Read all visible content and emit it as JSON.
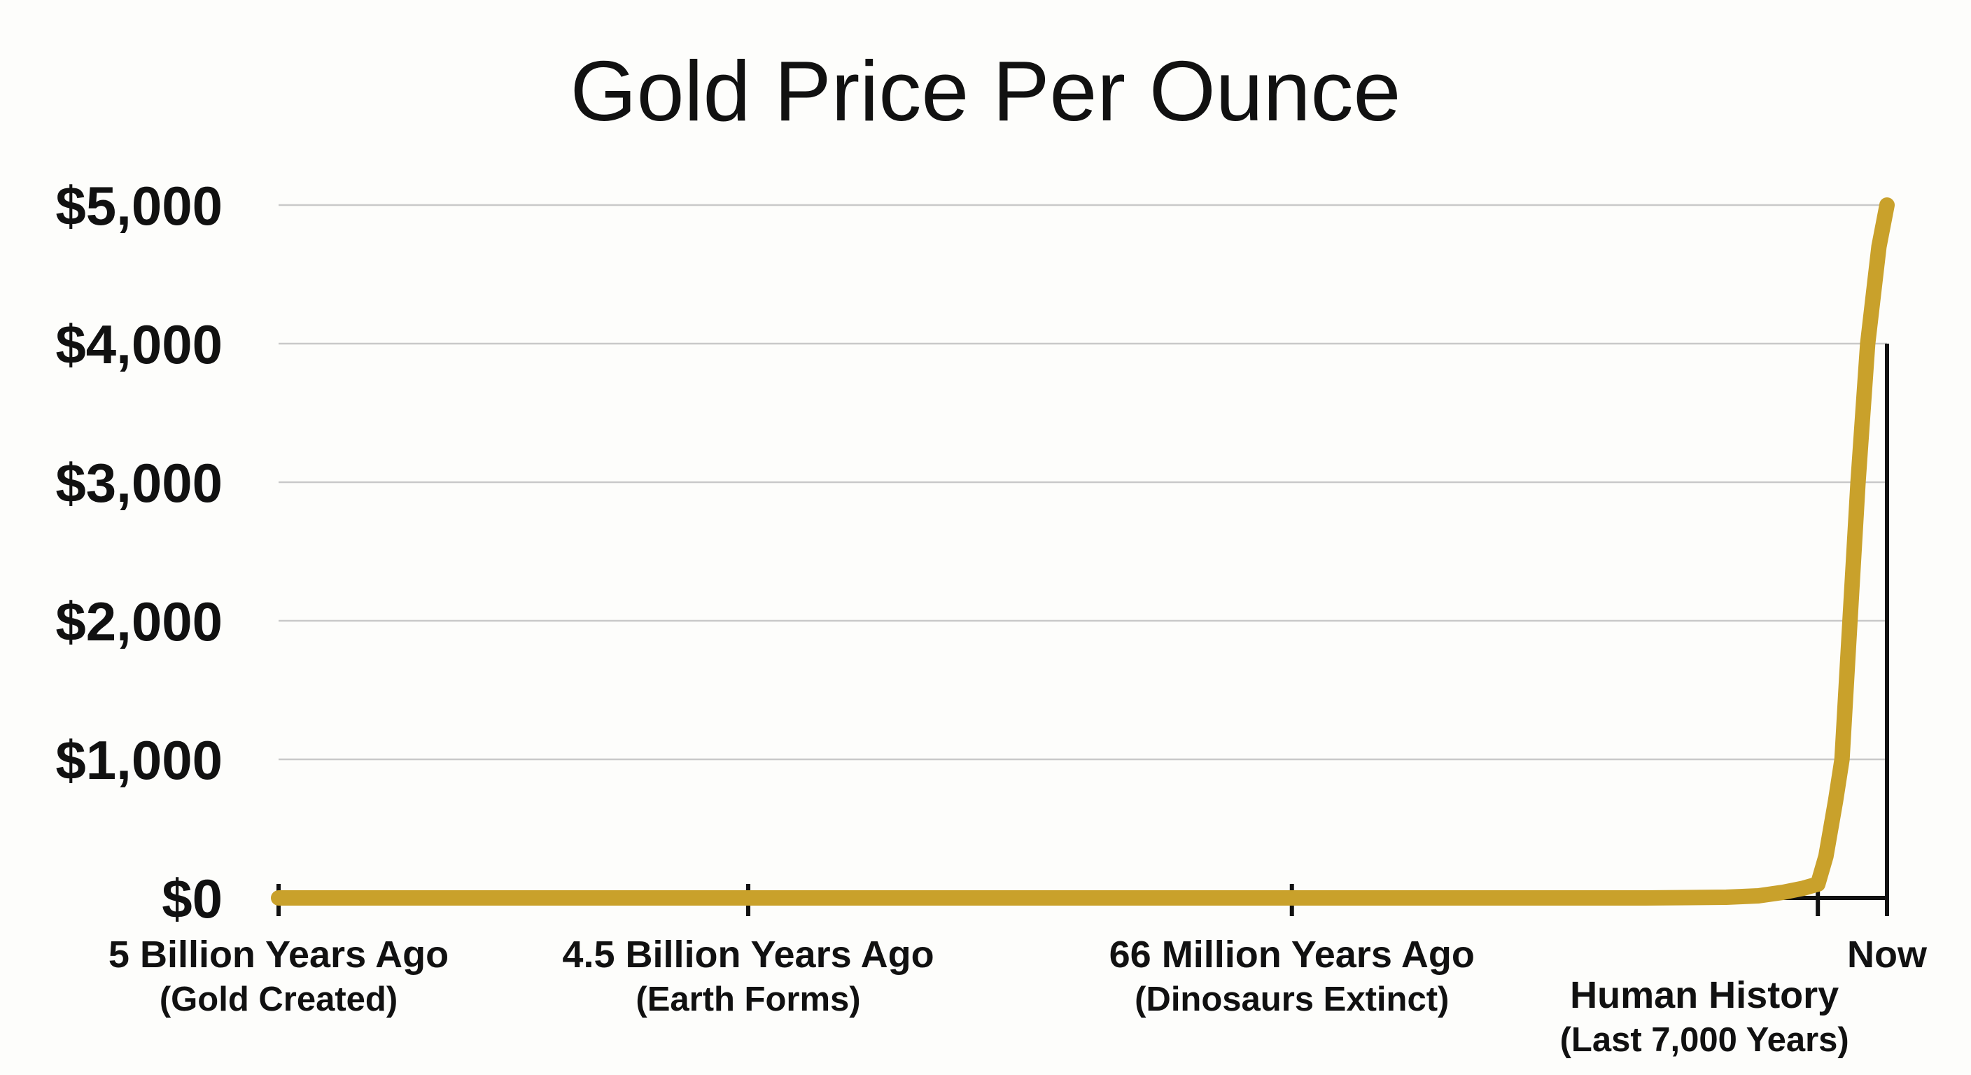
{
  "chart_data": {
    "type": "line",
    "title": "Gold Price Per Ounce",
    "xlabel": "",
    "ylabel": "",
    "ylim": [
      0,
      5000
    ],
    "y_ticks": [
      {
        "value": 0,
        "label": "$0"
      },
      {
        "value": 1000,
        "label": "$1,000"
      },
      {
        "value": 2000,
        "label": "$2,000"
      },
      {
        "value": 3000,
        "label": "$3,000"
      },
      {
        "value": 4000,
        "label": "$4,000"
      },
      {
        "value": 5000,
        "label": "$5,000"
      }
    ],
    "grid": true,
    "line_color": "#C9A12B",
    "x_ticks": [
      {
        "label": "5 Billion Years Ago",
        "sublabel": "(Gold Created)",
        "pos": 0
      },
      {
        "label": "4.5 Billion Years Ago",
        "sublabel": "(Earth Forms)",
        "pos": 0.292
      },
      {
        "label": "66 Million Years Ago",
        "sublabel": "(Dinosaurs Extinct)",
        "pos": 0.63
      },
      {
        "label": "Human History",
        "sublabel": "(Last 7,000 Years)",
        "pos": 0.957
      },
      {
        "label": "Now",
        "sublabel": "",
        "pos": 1
      }
    ],
    "series": [
      {
        "points": [
          [
            0,
            0
          ],
          [
            0.292,
            0
          ],
          [
            0.63,
            0
          ],
          [
            0.85,
            0
          ],
          [
            0.9,
            5
          ],
          [
            0.92,
            15
          ],
          [
            0.935,
            40
          ],
          [
            0.948,
            70
          ],
          [
            0.957,
            100
          ],
          [
            0.962,
            300
          ],
          [
            0.968,
            700
          ],
          [
            0.972,
            1000
          ],
          [
            0.976,
            1800
          ],
          [
            0.982,
            3000
          ],
          [
            0.988,
            4000
          ],
          [
            0.995,
            4700
          ],
          [
            1,
            5000
          ]
        ]
      }
    ]
  }
}
